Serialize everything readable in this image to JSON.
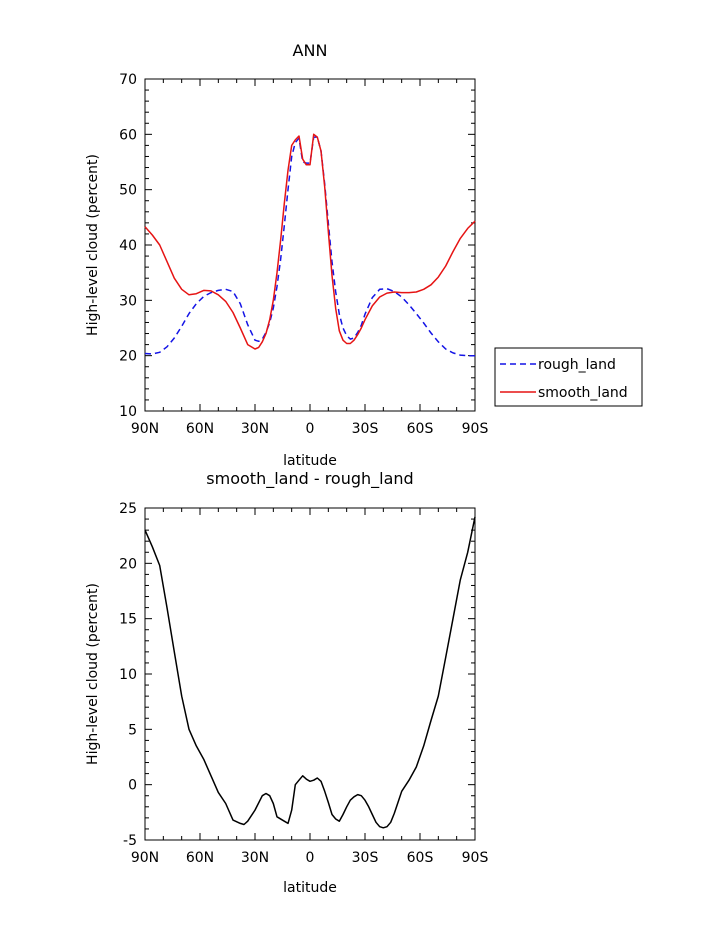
{
  "chart_data": [
    {
      "type": "line",
      "title": "ANN",
      "xlabel": "latitude",
      "ylabel": "High-level cloud (percent)",
      "xlim": [
        -90,
        90
      ],
      "ylim": [
        10,
        70
      ],
      "xticks": [
        -90,
        -60,
        -30,
        0,
        30,
        60,
        90
      ],
      "xticklabels": [
        "90N",
        "60N",
        "30N",
        "0",
        "30S",
        "60S",
        "90S"
      ],
      "yticks": [
        10,
        20,
        30,
        40,
        50,
        60,
        70
      ],
      "yticklabels": [
        "10",
        "20",
        "30",
        "40",
        "50",
        "60",
        "70"
      ],
      "grid": false,
      "legend": "right",
      "series": [
        {
          "name": "rough_land",
          "color": "#1414e6",
          "style": "dashed",
          "x": [
            -90,
            -86,
            -82,
            -78,
            -74,
            -70,
            -66,
            -62,
            -58,
            -54,
            -50,
            -46,
            -42,
            -38,
            -34,
            -30,
            -28,
            -26,
            -24,
            -22,
            -20,
            -18,
            -16,
            -14,
            -12,
            -10,
            -8,
            -6,
            -4,
            -2,
            0,
            2,
            4,
            6,
            8,
            10,
            12,
            14,
            16,
            18,
            20,
            22,
            24,
            26,
            28,
            30,
            34,
            38,
            42,
            46,
            50,
            54,
            58,
            62,
            66,
            70,
            74,
            78,
            82,
            86,
            90
          ],
          "y": [
            20.4,
            20.3,
            20.6,
            21.6,
            23.2,
            25.3,
            27.6,
            29.4,
            30.7,
            31.4,
            31.8,
            32.0,
            31.6,
            29.4,
            25.6,
            22.8,
            22.6,
            23.0,
            24.2,
            26.0,
            28.6,
            32.5,
            37.5,
            43.5,
            50.0,
            56.0,
            58.5,
            59.3,
            55.0,
            54.8,
            54.8,
            59.5,
            59.5,
            57.0,
            51.0,
            44.0,
            37.0,
            31.5,
            27.5,
            25.0,
            23.6,
            23.0,
            23.2,
            24.2,
            25.5,
            27.5,
            30.5,
            32.0,
            32.1,
            31.6,
            30.6,
            29.2,
            27.6,
            25.9,
            24.1,
            22.5,
            21.2,
            20.5,
            20.1,
            20.0,
            20.0
          ]
        },
        {
          "name": "smooth_land",
          "color": "#e61414",
          "style": "solid",
          "x": [
            -90,
            -86,
            -82,
            -78,
            -74,
            -70,
            -66,
            -62,
            -58,
            -54,
            -50,
            -46,
            -42,
            -38,
            -34,
            -30,
            -28,
            -26,
            -24,
            -22,
            -20,
            -18,
            -16,
            -14,
            -12,
            -10,
            -8,
            -6,
            -4,
            -2,
            0,
            2,
            4,
            6,
            8,
            10,
            12,
            14,
            16,
            18,
            20,
            22,
            24,
            26,
            28,
            30,
            34,
            38,
            42,
            46,
            50,
            54,
            58,
            62,
            66,
            70,
            74,
            78,
            82,
            86,
            90
          ],
          "y": [
            43.3,
            41.8,
            40.0,
            37.0,
            34.0,
            32.0,
            31.0,
            31.2,
            31.8,
            31.7,
            31.0,
            29.8,
            27.8,
            25.0,
            22.0,
            21.2,
            21.5,
            22.5,
            24.0,
            26.5,
            30.0,
            35.0,
            41.0,
            47.5,
            53.5,
            58.0,
            59.0,
            59.7,
            55.5,
            54.5,
            54.5,
            60.0,
            59.5,
            57.0,
            50.5,
            42.5,
            34.5,
            28.5,
            24.5,
            22.8,
            22.2,
            22.2,
            22.8,
            23.8,
            25.0,
            26.5,
            29.0,
            30.6,
            31.3,
            31.5,
            31.4,
            31.4,
            31.5,
            32.0,
            32.8,
            34.2,
            36.2,
            38.8,
            41.2,
            43.0,
            44.3
          ]
        }
      ]
    },
    {
      "type": "line",
      "title": "smooth_land - rough_land",
      "xlabel": "latitude",
      "ylabel": "High-level cloud (percent)",
      "xlim": [
        -90,
        90
      ],
      "ylim": [
        -5,
        25
      ],
      "xticks": [
        -90,
        -60,
        -30,
        0,
        30,
        60,
        90
      ],
      "xticklabels": [
        "90N",
        "60N",
        "30N",
        "0",
        "30S",
        "60S",
        "90S"
      ],
      "yticks": [
        -5,
        0,
        5,
        10,
        15,
        20,
        25
      ],
      "yticklabels": [
        "-5",
        "0",
        "5",
        "10",
        "15",
        "20",
        "25"
      ],
      "grid": false,
      "series": [
        {
          "color": "#000000",
          "style": "solid",
          "x": [
            -90,
            -86,
            -82,
            -78,
            -74,
            -70,
            -66,
            -62,
            -58,
            -54,
            -50,
            -46,
            -42,
            -38,
            -36,
            -34,
            -30,
            -26,
            -24,
            -22,
            -20,
            -18,
            -14,
            -12,
            -10,
            -8,
            -6,
            -4,
            -2,
            0,
            2,
            4,
            6,
            8,
            10,
            12,
            14,
            16,
            18,
            20,
            22,
            24,
            26,
            28,
            30,
            32,
            34,
            36,
            38,
            40,
            42,
            44,
            46,
            48,
            50,
            54,
            58,
            62,
            66,
            70,
            74,
            78,
            82,
            86,
            90
          ],
          "y": [
            23.0,
            21.5,
            19.8,
            16.0,
            12.0,
            8.0,
            5.0,
            3.5,
            2.3,
            0.8,
            -0.7,
            -1.7,
            -3.2,
            -3.5,
            -3.6,
            -3.3,
            -2.3,
            -1.0,
            -0.8,
            -1.0,
            -1.7,
            -2.9,
            -3.3,
            -3.5,
            -2.3,
            0.0,
            0.4,
            0.8,
            0.5,
            0.3,
            0.4,
            0.6,
            0.3,
            -0.6,
            -1.6,
            -2.7,
            -3.1,
            -3.3,
            -2.7,
            -2.0,
            -1.4,
            -1.1,
            -0.9,
            -1.0,
            -1.4,
            -2.0,
            -2.7,
            -3.4,
            -3.8,
            -3.9,
            -3.8,
            -3.4,
            -2.6,
            -1.6,
            -0.6,
            0.4,
            1.6,
            3.5,
            5.8,
            8.0,
            11.5,
            15.0,
            18.5,
            21.0,
            24.2
          ]
        }
      ]
    }
  ]
}
